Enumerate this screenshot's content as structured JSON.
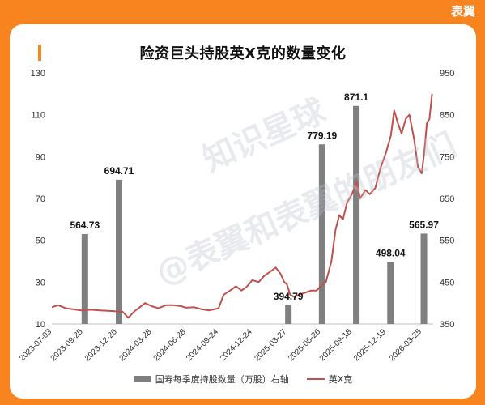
{
  "brand": "表翼",
  "chart_data": {
    "type": "bar+line",
    "title": "险资巨头持股英X克的数量变化",
    "x_tick_labels": [
      "2023-07-03",
      "2023-09-25",
      "2023-12-26",
      "2024-03-28",
      "2024-06-28",
      "2024-09-24",
      "2024-12-24",
      "2025-03-27",
      "2025-06-26",
      "2025-09-18",
      "2025-12-19",
      "2026-03-25"
    ],
    "left_axis": {
      "min": 10,
      "max": 130,
      "ticks": [
        10,
        30,
        50,
        70,
        90,
        110,
        130
      ]
    },
    "right_axis": {
      "min": 350,
      "max": 950,
      "ticks": [
        350,
        450,
        550,
        650,
        750,
        850,
        950
      ]
    },
    "bar_series": {
      "name": "国寿每季度持股数量（万股）右轴",
      "color": "#7f7f7f",
      "axis": "right",
      "points": [
        {
          "date": "2023-09-30",
          "value": 564.73,
          "label": "564.73"
        },
        {
          "date": "2023-12-31",
          "value": 694.71,
          "label": "694.71"
        },
        {
          "date": "2025-03-31",
          "value": 394.79,
          "label": "394.79"
        },
        {
          "date": "2025-06-30",
          "value": 779.19,
          "label": "779.19"
        },
        {
          "date": "2025-09-30",
          "value": 871.1,
          "label": "871.1"
        },
        {
          "date": "2025-12-31",
          "value": 498.04,
          "label": "498.04"
        },
        {
          "date": "2026-03-31",
          "value": 565.97,
          "label": "565.97"
        }
      ]
    },
    "line_series": {
      "name": "英X克",
      "color": "#c0504d",
      "axis": "left",
      "points": [
        [
          "2023-07-03",
          18
        ],
        [
          "2023-07-20",
          19
        ],
        [
          "2023-08-10",
          17.5
        ],
        [
          "2023-08-30",
          17
        ],
        [
          "2023-09-20",
          16.5
        ],
        [
          "2023-10-15",
          16.8
        ],
        [
          "2023-11-10",
          16.5
        ],
        [
          "2023-12-10",
          16.2
        ],
        [
          "2023-12-26",
          16
        ],
        [
          "2024-01-10",
          15.8
        ],
        [
          "2024-01-25",
          13
        ],
        [
          "2024-02-10",
          16
        ],
        [
          "2024-02-25",
          18
        ],
        [
          "2024-03-10",
          20
        ],
        [
          "2024-03-28",
          18.5
        ],
        [
          "2024-04-15",
          17.5
        ],
        [
          "2024-05-05",
          19
        ],
        [
          "2024-05-25",
          19
        ],
        [
          "2024-06-15",
          18.5
        ],
        [
          "2024-06-28",
          17.8
        ],
        [
          "2024-07-20",
          18
        ],
        [
          "2024-08-10",
          17
        ],
        [
          "2024-08-30",
          16.5
        ],
        [
          "2024-09-24",
          17.5
        ],
        [
          "2024-10-08",
          24
        ],
        [
          "2024-10-25",
          26
        ],
        [
          "2024-11-10",
          28
        ],
        [
          "2024-11-25",
          26
        ],
        [
          "2024-12-10",
          28
        ],
        [
          "2024-12-24",
          31
        ],
        [
          "2025-01-10",
          30
        ],
        [
          "2025-01-25",
          33
        ],
        [
          "2025-02-10",
          35
        ],
        [
          "2025-02-25",
          37
        ],
        [
          "2025-03-10",
          34
        ],
        [
          "2025-03-20",
          30
        ],
        [
          "2025-03-27",
          29
        ],
        [
          "2025-04-05",
          24
        ],
        [
          "2025-04-15",
          23
        ],
        [
          "2025-04-30",
          24
        ],
        [
          "2025-05-15",
          25
        ],
        [
          "2025-06-01",
          26
        ],
        [
          "2025-06-15",
          26
        ],
        [
          "2025-06-26",
          28
        ],
        [
          "2025-07-10",
          30
        ],
        [
          "2025-07-25",
          40
        ],
        [
          "2025-08-05",
          55
        ],
        [
          "2025-08-15",
          62
        ],
        [
          "2025-08-25",
          60
        ],
        [
          "2025-09-05",
          68
        ],
        [
          "2025-09-18",
          72
        ],
        [
          "2025-10-01",
          78
        ],
        [
          "2025-10-10",
          70
        ],
        [
          "2025-10-25",
          74
        ],
        [
          "2025-11-05",
          72
        ],
        [
          "2025-11-20",
          75
        ],
        [
          "2025-12-05",
          85
        ],
        [
          "2025-12-19",
          92
        ],
        [
          "2026-01-01",
          100
        ],
        [
          "2026-01-10",
          112
        ],
        [
          "2026-01-20",
          106
        ],
        [
          "2026-01-30",
          101
        ],
        [
          "2026-02-10",
          108
        ],
        [
          "2026-02-20",
          110
        ],
        [
          "2026-03-05",
          98
        ],
        [
          "2026-03-15",
          85
        ],
        [
          "2026-03-22",
          83
        ],
        [
          "2026-03-25",
          82
        ],
        [
          "2026-04-01",
          92
        ],
        [
          "2026-04-08",
          106
        ],
        [
          "2026-04-15",
          108
        ],
        [
          "2026-04-22",
          120
        ]
      ]
    },
    "grid": false,
    "legend_position": "bottom"
  },
  "watermark": [
    "知识星球",
    "@表翼和表翼的朋友们"
  ]
}
